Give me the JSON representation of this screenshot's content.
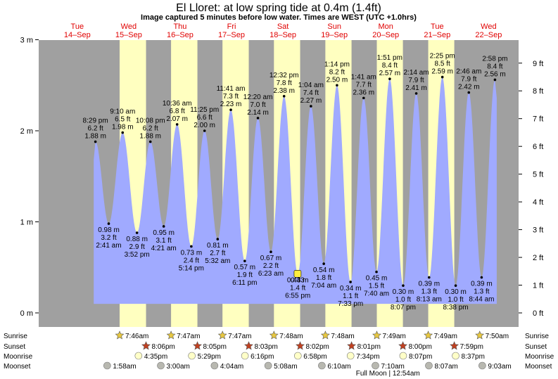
{
  "header": {
    "title": "El Lloret: at low  spring tide at 0.4m (1.4ft)",
    "subtitle": "Image captured 5 minutes before low water. Times are WEST (UTC +1.0hrs)"
  },
  "chart_data": {
    "type": "area",
    "title": "El Lloret: at low  spring tide at 0.4m (1.4ft)",
    "ylabel_left": "m",
    "ylabel_right": "ft",
    "ylim": [
      0,
      3
    ],
    "x_range_hours": [
      -6,
      218
    ],
    "y_ticks_m": [
      "0 m",
      "1 m",
      "2 m",
      "3 m"
    ],
    "y_ticks_ft": [
      "0 ft",
      "1 ft",
      "2 ft",
      "3 ft",
      "4 ft",
      "5 ft",
      "6 ft",
      "7 ft",
      "8 ft",
      "9 ft"
    ],
    "days": [
      {
        "dow": "Tue",
        "date": "14–Sep"
      },
      {
        "dow": "Wed",
        "date": "15–Sep"
      },
      {
        "dow": "Thu",
        "date": "16–Sep"
      },
      {
        "dow": "Fri",
        "date": "17–Sep"
      },
      {
        "dow": "Sat",
        "date": "18–Sep"
      },
      {
        "dow": "Sun",
        "date": "19–Sep"
      },
      {
        "dow": "Mon",
        "date": "20–Sep"
      },
      {
        "dow": "Tue",
        "date": "21–Sep"
      },
      {
        "dow": "Wed",
        "date": "22–Sep"
      }
    ],
    "daylight": [
      {
        "rise": 31.77,
        "set": 44.1
      },
      {
        "rise": 55.78,
        "set": 68.08
      },
      {
        "rise": 79.78,
        "set": 92.05
      },
      {
        "rise": 103.8,
        "set": 116.03
      },
      {
        "rise": 127.8,
        "set": 140.02
      },
      {
        "rise": 151.82,
        "set": 164.0
      },
      {
        "rise": 175.82,
        "set": 187.98
      }
    ],
    "tides": [
      {
        "t": 20.48,
        "m": 1.88,
        "ft": "6.2 ft",
        "time": "8:29 pm",
        "type": "high"
      },
      {
        "t": 26.68,
        "m": 0.98,
        "ft": "3.2 ft",
        "time": "2:41 am",
        "type": "low"
      },
      {
        "t": 33.17,
        "m": 1.98,
        "ft": "6.5 ft",
        "time": "9:10 am",
        "type": "high"
      },
      {
        "t": 39.87,
        "m": 0.88,
        "ft": "2.9 ft",
        "time": "3:52 pm",
        "type": "low"
      },
      {
        "t": 46.13,
        "m": 1.88,
        "ft": "6.2 ft",
        "time": "10:08 pm",
        "type": "high"
      },
      {
        "t": 52.35,
        "m": 0.95,
        "ft": "3.1 ft",
        "time": "4:21 am",
        "type": "low"
      },
      {
        "t": 58.6,
        "m": 2.07,
        "ft": "6.8 ft",
        "time": "10:36 am",
        "type": "high"
      },
      {
        "t": 65.23,
        "m": 0.73,
        "ft": "2.4 ft",
        "time": "5:14 pm",
        "type": "low"
      },
      {
        "t": 71.42,
        "m": 2.0,
        "ft": "6.6 ft",
        "time": "11:25 pm",
        "type": "high"
      },
      {
        "t": 77.53,
        "m": 0.81,
        "ft": "2.7 ft",
        "time": "5:32 am",
        "type": "low"
      },
      {
        "t": 83.68,
        "m": 2.23,
        "ft": "7.3 ft",
        "time": "11:41 am",
        "type": "high"
      },
      {
        "t": 90.18,
        "m": 0.57,
        "ft": "1.9 ft",
        "time": "6:11 pm",
        "type": "low"
      },
      {
        "t": 96.33,
        "m": 2.14,
        "ft": "7.0 ft",
        "time": "12:20 am",
        "type": "high"
      },
      {
        "t": 102.38,
        "m": 0.67,
        "ft": "2.2 ft",
        "time": "6:23 am",
        "type": "low"
      },
      {
        "t": 108.53,
        "m": 2.38,
        "ft": "7.8 ft",
        "time": "12:32 pm",
        "type": "high"
      },
      {
        "t": 114.92,
        "m": 0.43,
        "ft": "1.4 ft",
        "time": "6:55 pm",
        "type": "low"
      },
      {
        "t": 121.07,
        "m": 2.27,
        "ft": "7.4 ft",
        "time": "1:04 am",
        "type": "high"
      },
      {
        "t": 127.07,
        "m": 0.54,
        "ft": "1.8 ft",
        "time": "7:04 am",
        "type": "low"
      },
      {
        "t": 133.23,
        "m": 2.5,
        "ft": "8.2 ft",
        "time": "1:14 pm",
        "type": "high"
      },
      {
        "t": 139.55,
        "m": 0.34,
        "ft": "1.1 ft",
        "time": "7:33 pm",
        "type": "low"
      },
      {
        "t": 145.68,
        "m": 2.36,
        "ft": "7.7 ft",
        "time": "1:41 am",
        "type": "high"
      },
      {
        "t": 151.67,
        "m": 0.45,
        "ft": "1.5 ft",
        "time": "7:40 am",
        "type": "low"
      },
      {
        "t": 157.85,
        "m": 2.57,
        "ft": "8.4 ft",
        "time": "1:51 pm",
        "type": "high"
      },
      {
        "t": 164.12,
        "m": 0.3,
        "ft": "1.0 ft",
        "time": "8:07 pm",
        "type": "low"
      },
      {
        "t": 170.23,
        "m": 2.41,
        "ft": "7.9 ft",
        "time": "2:14 am",
        "type": "high"
      },
      {
        "t": 176.22,
        "m": 0.39,
        "ft": "1.3 ft",
        "time": "8:13 am",
        "type": "low"
      },
      {
        "t": 182.42,
        "m": 2.59,
        "ft": "8.5 ft",
        "time": "2:25 pm",
        "type": "high"
      },
      {
        "t": 188.63,
        "m": 0.3,
        "ft": "1.0 ft",
        "time": "8:38 pm",
        "type": "low"
      },
      {
        "t": 194.77,
        "m": 2.42,
        "ft": "7.9 ft",
        "time": "2:46 am",
        "type": "high"
      },
      {
        "t": 200.73,
        "m": 0.39,
        "ft": "1.3 ft",
        "time": "8:44 am",
        "type": "low"
      },
      {
        "t": 206.97,
        "m": 2.56,
        "ft": "8.4 ft",
        "time": "2:58 pm",
        "type": "high"
      }
    ],
    "current": {
      "label": "0.43",
      "t": 114.84,
      "m": 0.43
    },
    "sunrise": [
      {
        "t": 31.77,
        "label": "7:46am"
      },
      {
        "t": 55.78,
        "label": "7:47am"
      },
      {
        "t": 79.78,
        "label": "7:47am"
      },
      {
        "t": 103.8,
        "label": "7:48am"
      },
      {
        "t": 127.8,
        "label": "7:48am"
      },
      {
        "t": 151.82,
        "label": "7:49am"
      },
      {
        "t": 175.82,
        "label": "7:49am"
      },
      {
        "t": 199.83,
        "label": "7:50am"
      }
    ],
    "sunset": [
      {
        "t": 44.1,
        "label": "8:06pm"
      },
      {
        "t": 68.08,
        "label": "8:05pm"
      },
      {
        "t": 92.05,
        "label": "8:03pm"
      },
      {
        "t": 116.03,
        "label": "8:02pm"
      },
      {
        "t": 140.02,
        "label": "8:01pm"
      },
      {
        "t": 164.0,
        "label": "8:00pm"
      },
      {
        "t": 187.98,
        "label": "7:59pm"
      }
    ],
    "moonrise": [
      {
        "t": 40.58,
        "label": "4:35pm"
      },
      {
        "t": 65.48,
        "label": "5:29pm"
      },
      {
        "t": 90.27,
        "label": "6:16pm"
      },
      {
        "t": 114.97,
        "label": "6:58pm"
      },
      {
        "t": 139.57,
        "label": "7:34pm"
      },
      {
        "t": 164.12,
        "label": "8:07pm"
      },
      {
        "t": 188.62,
        "label": "8:37pm"
      }
    ],
    "moonset": [
      {
        "t": 25.97,
        "label": "1:58am"
      },
      {
        "t": 51.0,
        "label": "3:00am"
      },
      {
        "t": 76.07,
        "label": "4:04am"
      },
      {
        "t": 101.13,
        "label": "5:08am"
      },
      {
        "t": 126.17,
        "label": "6:10am"
      },
      {
        "t": 151.17,
        "label": "7:10am"
      },
      {
        "t": 176.12,
        "label": "8:07am"
      },
      {
        "t": 201.05,
        "label": "9:03am"
      }
    ],
    "moon_phase": {
      "t": 157.0,
      "label": "Full Moon | 12:54am"
    },
    "row_labels": {
      "sunrise": "Sunrise",
      "sunset": "Sunset",
      "moonrise": "Moonrise",
      "moonset": "Moonset"
    },
    "colors": {
      "night": "#a0a0a0",
      "day": "#ffffc0",
      "tide": "#a0aaff",
      "sunrise": "#e8c840",
      "sunset": "#c04020",
      "moonrise": "#ffffc8",
      "moonset": "#b8b8b0"
    }
  }
}
